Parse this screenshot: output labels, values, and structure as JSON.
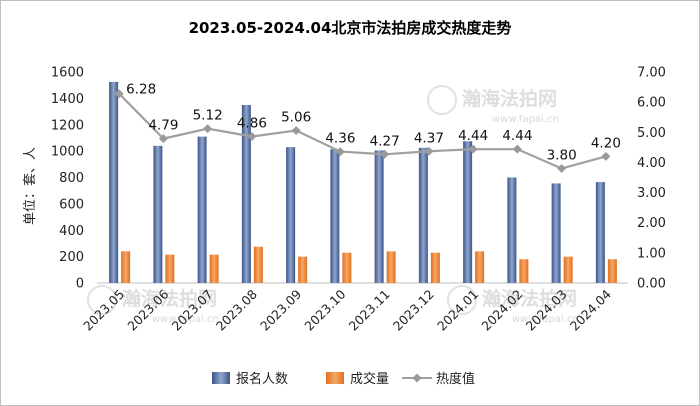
{
  "chart_data": {
    "type": "bar",
    "title": "2023.05-2024.04北京市法拍房成交热度走势",
    "ylabel": "单位：套、人",
    "categories": [
      "2023.05",
      "2023.06",
      "2023.07",
      "2023.08",
      "2023.09",
      "2023.10",
      "2023.11",
      "2023.12",
      "2024.01",
      "2024.02",
      "2024.03",
      "2024.04"
    ],
    "series": [
      {
        "name": "报名人数",
        "type": "bar",
        "axis": "left",
        "color": "#4a6294",
        "values": [
          1525,
          1040,
          1110,
          1350,
          1030,
          1015,
          1005,
          1025,
          1075,
          800,
          755,
          765
        ]
      },
      {
        "name": "成交量",
        "type": "bar",
        "axis": "left",
        "color": "#ee7d2a",
        "values": [
          240,
          215,
          215,
          275,
          200,
          230,
          240,
          230,
          240,
          180,
          200,
          180
        ]
      },
      {
        "name": "热度值",
        "type": "line",
        "axis": "right",
        "color": "#9a9a9a",
        "values": [
          6.28,
          4.79,
          5.12,
          4.86,
          5.06,
          4.36,
          4.27,
          4.37,
          4.44,
          4.44,
          3.8,
          4.2
        ],
        "labels": [
          "6.28",
          "4.79",
          "5.12",
          "4.86",
          "5.06",
          "4.36",
          "4.27",
          "4.37",
          "4.44",
          "4.44",
          "3.80",
          "4.20"
        ]
      }
    ],
    "y_left": {
      "min": 0,
      "max": 1600,
      "ticks": [
        "0",
        "200",
        "400",
        "600",
        "800",
        "1000",
        "1200",
        "1400",
        "1600"
      ]
    },
    "y_right": {
      "min": 0,
      "max": 7,
      "ticks": [
        "0.00",
        "1.00",
        "2.00",
        "3.00",
        "4.00",
        "5.00",
        "6.00",
        "7.00"
      ]
    },
    "grid": false,
    "legend_position": "bottom"
  },
  "watermark": {
    "name": "瀚海法拍网",
    "url": "www.fapai.cn"
  }
}
